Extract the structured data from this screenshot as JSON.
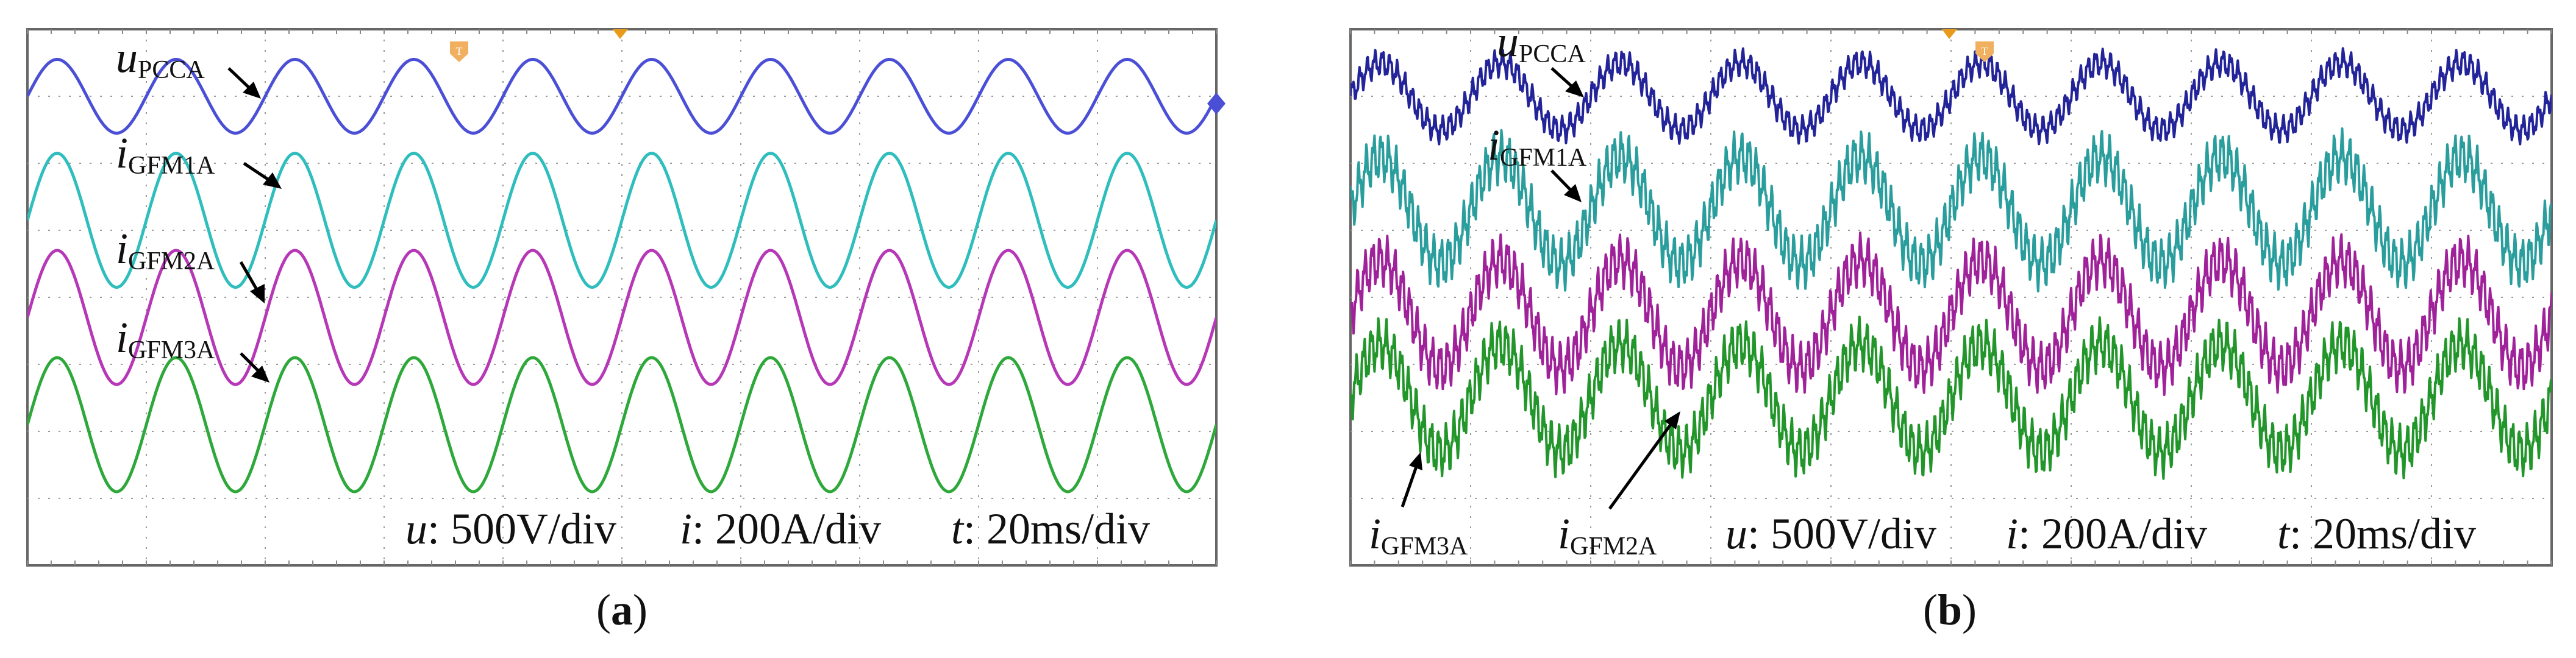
{
  "chart_data": [
    {
      "type": "line",
      "panel_label": "(a)",
      "panel_letter": "a",
      "grid": true,
      "x_unit": "ms",
      "x_range": [
        0,
        200
      ],
      "y_unit": "div",
      "y_range": [
        -4,
        4
      ],
      "annotations": {
        "u_scale": {
          "var": "u",
          "value": ": 500V/div"
        },
        "i_scale": {
          "var": "i",
          "value": ": 200A/div"
        },
        "t_scale": {
          "var": "t",
          "value": ": 20ms/div"
        }
      },
      "series": [
        {
          "name": "uPCCA",
          "main": "u",
          "sub": "PCCA",
          "color": "#4a4fd6",
          "period_ms": 20,
          "amplitude_div": 0.55,
          "offset_div": 3.0,
          "phase_deg": 0,
          "ripple_div": 0
        },
        {
          "name": "iGFM1A",
          "main": "i",
          "sub": "GFM1A",
          "color": "#2fbdbd",
          "period_ms": 20,
          "amplitude_div": 1.0,
          "offset_div": 1.15,
          "phase_deg": 0,
          "ripple_div": 0
        },
        {
          "name": "iGFM2A",
          "main": "i",
          "sub": "GFM2A",
          "color": "#b638b6",
          "period_ms": 20,
          "amplitude_div": 1.0,
          "offset_div": -0.3,
          "phase_deg": 0,
          "ripple_div": 0
        },
        {
          "name": "iGFM3A",
          "main": "i",
          "sub": "GFM3A",
          "color": "#2ea83a",
          "period_ms": 20,
          "amplitude_div": 1.0,
          "offset_div": -1.9,
          "phase_deg": 0,
          "ripple_div": 0
        }
      ]
    },
    {
      "type": "line",
      "panel_label": "(b)",
      "panel_letter": "b",
      "grid": true,
      "x_unit": "ms",
      "x_range": [
        0,
        200
      ],
      "y_unit": "div",
      "y_range": [
        -4,
        4
      ],
      "annotations": {
        "u_scale": {
          "var": "u",
          "value": ": 500V/div"
        },
        "i_scale": {
          "var": "i",
          "value": ": 200A/div"
        },
        "t_scale": {
          "var": "t",
          "value": ": 20ms/div"
        }
      },
      "series": [
        {
          "name": "uPCCA",
          "main": "u",
          "sub": "PCCA",
          "color": "#23239a",
          "period_ms": 20,
          "amplitude_div": 0.5,
          "offset_div": 3.0,
          "phase_deg": 0,
          "ripple_div": 0.15
        },
        {
          "name": "iGFM1A",
          "main": "i",
          "sub": "GFM1A",
          "color": "#2a9d9d",
          "period_ms": 20,
          "amplitude_div": 0.8,
          "offset_div": 1.3,
          "phase_deg": 0,
          "ripple_div": 0.28
        },
        {
          "name": "iGFM2A",
          "main": "i",
          "sub": "GFM2A",
          "color": "#a0229a",
          "period_ms": 20,
          "amplitude_div": 0.8,
          "offset_div": -0.25,
          "phase_deg": 0,
          "ripple_div": 0.28
        },
        {
          "name": "iGFM3A",
          "main": "i",
          "sub": "GFM3A",
          "color": "#22962a",
          "period_ms": 20,
          "amplitude_div": 0.8,
          "offset_div": -1.5,
          "phase_deg": 0,
          "ripple_div": 0.28
        }
      ]
    }
  ]
}
